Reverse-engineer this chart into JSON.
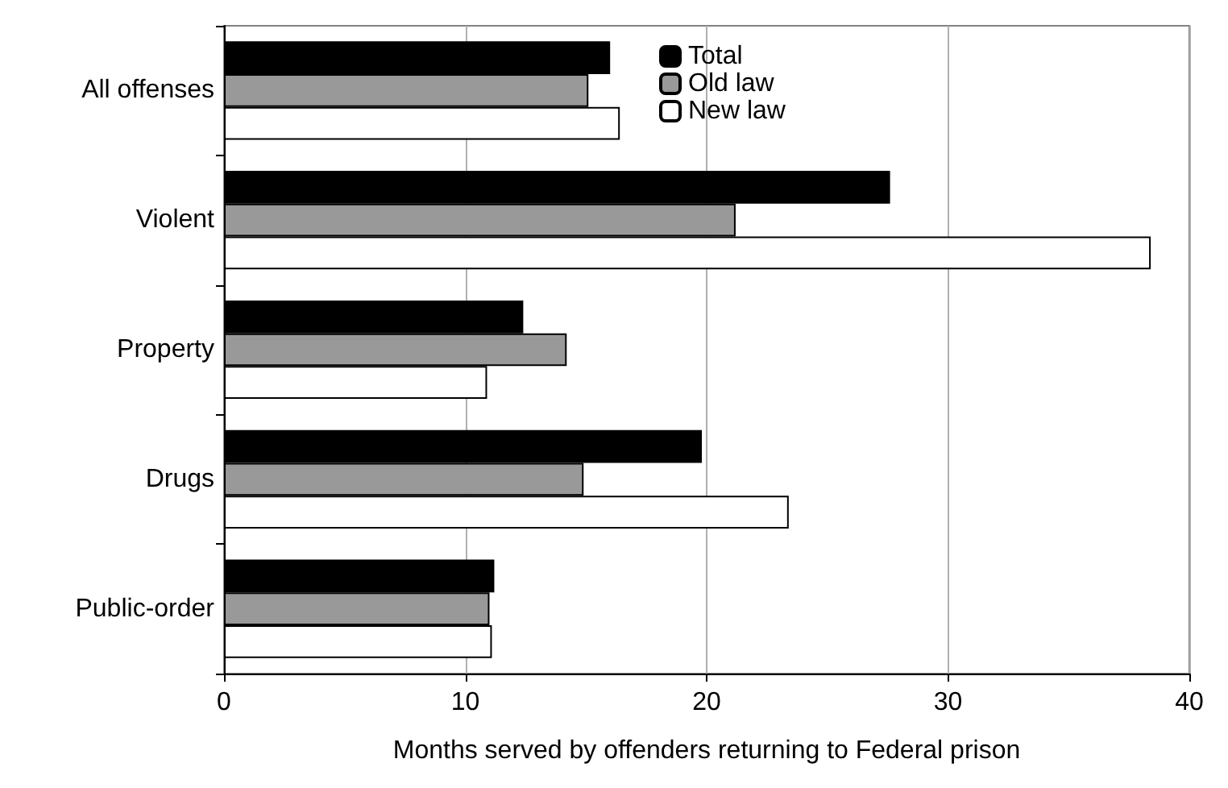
{
  "chart_data": {
    "type": "bar",
    "orientation": "horizontal",
    "xlabel": "Months served by offenders returning to Federal prison",
    "categories": [
      "All offenses",
      "Violent",
      "Property",
      "Drugs",
      "Public-order"
    ],
    "series": [
      {
        "name": "Total",
        "color": "#000000",
        "values": [
          16.0,
          27.6,
          12.4,
          19.8,
          11.2
        ]
      },
      {
        "name": "Old law",
        "color": "#999999",
        "values": [
          15.1,
          21.2,
          14.2,
          14.9,
          11.0
        ]
      },
      {
        "name": "New law",
        "color": "#ffffff",
        "values": [
          16.4,
          38.4,
          10.9,
          23.4,
          11.1
        ]
      }
    ],
    "xlim": [
      0,
      40
    ],
    "xticks": [
      0,
      10,
      20,
      30,
      40
    ],
    "grid": "x",
    "legend": "top"
  }
}
